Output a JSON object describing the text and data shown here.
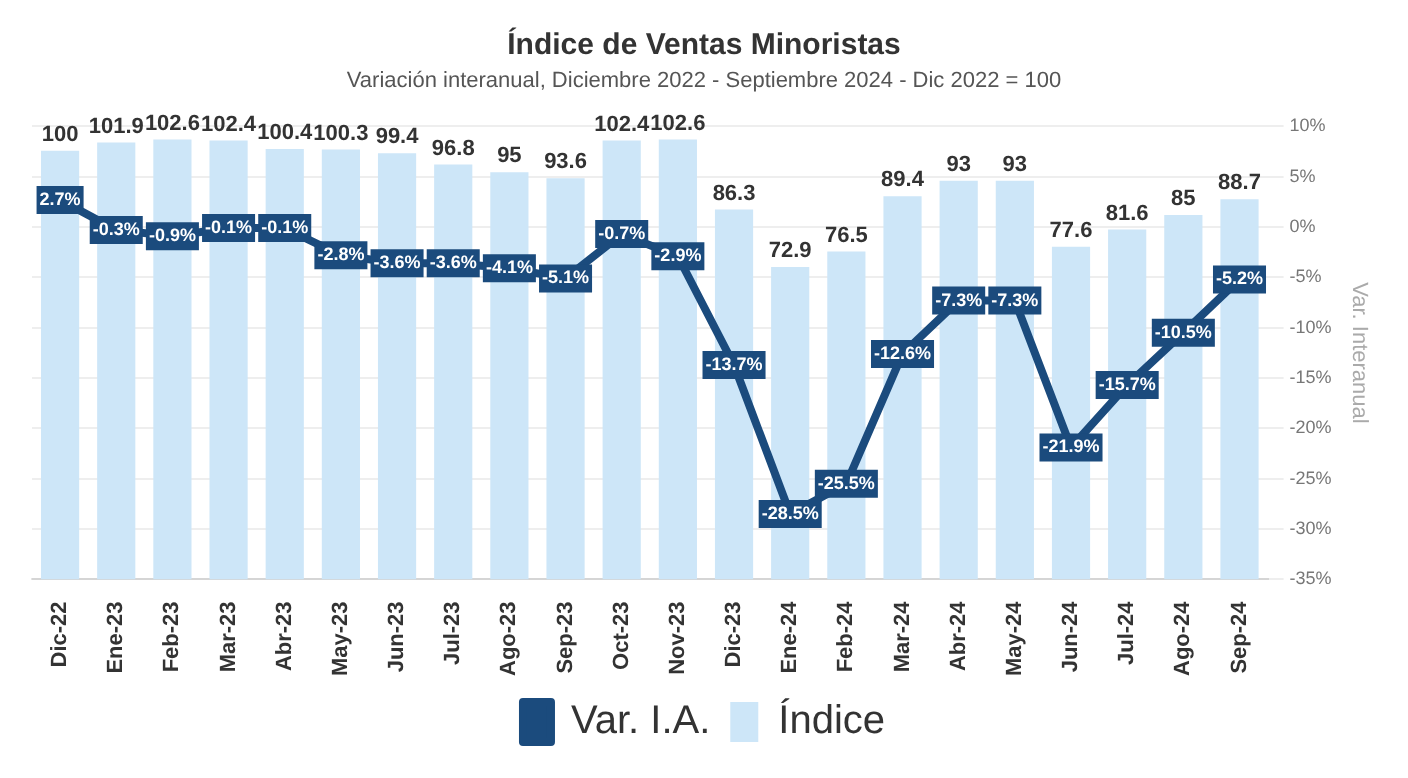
{
  "chart_data": {
    "type": "bar",
    "title": "Índice de Ventas Minoristas",
    "subtitle": "Variación interanual, Diciembre 2022 - Septiembre 2024 - Dic 2022 = 100",
    "y2label": "Var. Interanual",
    "categories": [
      "Dic-22",
      "Ene-23",
      "Feb-23",
      "Mar-23",
      "Abr-23",
      "May-23",
      "Jun-23",
      "Jul-23",
      "Ago-23",
      "Sep-23",
      "Oct-23",
      "Nov-23",
      "Dic-23",
      "Ene-24",
      "Feb-24",
      "Mar-24",
      "Abr-24",
      "May-24",
      "Jun-24",
      "Jul-24",
      "Ago-24",
      "Sep-24"
    ],
    "series": [
      {
        "name": "Var. I.A.",
        "type": "line",
        "axis": "y2",
        "color": "#1b4b7d",
        "marker": "square",
        "values": [
          2.7,
          -0.3,
          -0.9,
          -0.1,
          -0.1,
          -2.8,
          -3.6,
          -3.6,
          -4.1,
          -5.1,
          -0.7,
          -2.9,
          -13.7,
          -28.5,
          -25.5,
          -12.6,
          -7.3,
          -7.3,
          -21.9,
          -15.7,
          -10.5,
          -5.2
        ],
        "value_labels": [
          "2.7%",
          "-0.3%",
          "-0.9%",
          "-0.1%",
          "-0.1%",
          "-2.8%",
          "-3.6%",
          "-3.6%",
          "-4.1%",
          "-5.1%",
          "-0.7%",
          "-2.9%",
          "-13.7%",
          "-28.5%",
          "-25.5%",
          "-12.6%",
          "-7.3%",
          "-7.3%",
          "-21.9%",
          "-15.7%",
          "-10.5%",
          "-5.2%"
        ]
      },
      {
        "name": "Índice",
        "color": "#cde6f8",
        "values": [
          100,
          101.9,
          102.6,
          102.4,
          100.4,
          100.3,
          99.4,
          96.8,
          95,
          93.6,
          102.4,
          102.6,
          86.3,
          72.9,
          76.5,
          89.4,
          93,
          93,
          77.6,
          81.6,
          85,
          88.7
        ],
        "value_labels": [
          "100",
          "101.9",
          "102.6",
          "102.4",
          "100.4",
          "100.3",
          "99.4",
          "96.8",
          "95",
          "93.6",
          "102.4",
          "102.6",
          "86.3",
          "72.9",
          "76.5",
          "89.4",
          "93",
          "93",
          "77.6",
          "81.6",
          "85",
          "88.7"
        ]
      }
    ],
    "y2lim": [
      -35,
      10
    ],
    "y2ticks": [
      {
        "value": 10,
        "label": "10%"
      },
      {
        "value": 5,
        "label": "5%"
      },
      {
        "value": 0,
        "label": "0%"
      },
      {
        "value": -5,
        "label": "-5%"
      },
      {
        "value": -10,
        "label": "-10%"
      },
      {
        "value": -15,
        "label": "-15%"
      },
      {
        "value": -20,
        "label": "-20%"
      },
      {
        "value": -25,
        "label": "-25%"
      },
      {
        "value": -30,
        "label": "-30%"
      },
      {
        "value": -35,
        "label": "-35%"
      }
    ],
    "grid": "y",
    "legend": "bottom"
  }
}
